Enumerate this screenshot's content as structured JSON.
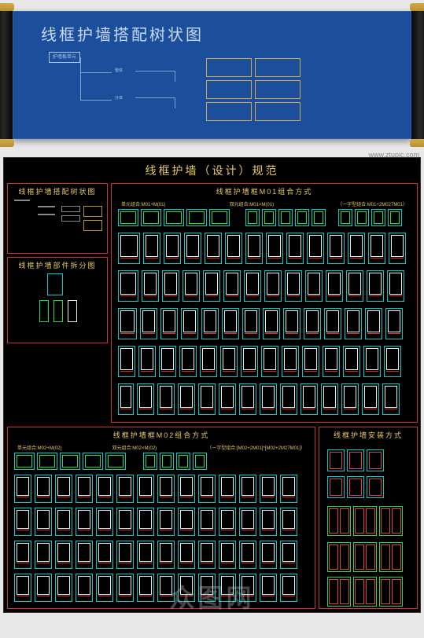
{
  "blueprint": {
    "title": "线框护墙搭配树状图",
    "root_label": "护墙板单元",
    "branches": [
      "整体",
      "分体"
    ],
    "leaf_boxes": [
      "",
      "",
      "",
      ""
    ],
    "bg_color": "#1b4f9c",
    "text_color": "#c8d8ee",
    "line_color": "#7ca0d0",
    "box_color": "#d4a84a"
  },
  "watermark": {
    "url": "www.ztupic.com",
    "brand": "众图网"
  },
  "cad": {
    "main_title": "线框护墙（设计）规范",
    "sections": {
      "tree": {
        "title": "线框护墙搭配树状图"
      },
      "parts": {
        "title": "线框护墙部件拆分图"
      },
      "m01": {
        "title": "线框护墙框M01组合方式",
        "sub_a": "单元组合:M01+M(01)",
        "sub_b": "双元组合:M01×M(01)",
        "sub_c": "（一字型组合:M01+2M027M01）"
      },
      "m02": {
        "title": "线框护墙框M02组合方式",
        "sub_a": "单元组合:M02+M(02)",
        "sub_b": "双元组合:M02×M(02)",
        "sub_c": "（一字型组合:[M02+2M01]*[M02+2M27M01]）"
      },
      "install": {
        "title": "线框护墙安装方式"
      }
    },
    "colors": {
      "bg": "#000000",
      "border": "#cc3333",
      "title": "#e6c866",
      "cyan": "#00cccc",
      "green": "#22dd44",
      "white": "#eeeeee"
    },
    "m01_grid": {
      "top_row_count": 5,
      "tall_rows": 5,
      "tall_per_row": 14
    },
    "m02_grid": {
      "top_row_count": 5,
      "tall_rows": 4,
      "tall_per_row": 14
    }
  }
}
